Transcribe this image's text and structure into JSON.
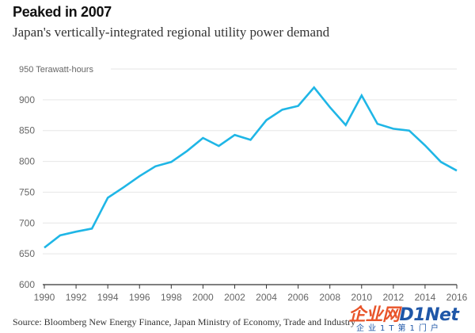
{
  "title": "Peaked in 2007",
  "subtitle": "Japan's vertically-integrated regional utility power demand",
  "source": "Source: Bloomberg New Energy Finance, Japan Ministry of Economy, Trade and Industry",
  "watermark": {
    "part1": "企业网",
    "part2": "D1Net",
    "sub": "企业1T第1门户"
  },
  "colors": {
    "line": "#1fb6e6",
    "grid": "#e6e6e6",
    "axis": "#333333",
    "tick_text": "#666666"
  },
  "chart_data": {
    "type": "line",
    "title": "Peaked in 2007",
    "subtitle": "Japan's vertically-integrated regional utility power demand",
    "ylabel": "Terawatt-hours",
    "y_unit_label": "950 Terawatt-hours",
    "xlim": [
      1990,
      2016
    ],
    "ylim": [
      600,
      950
    ],
    "yticks": [
      600,
      650,
      700,
      750,
      800,
      850,
      900,
      950
    ],
    "xticks": [
      1990,
      1992,
      1994,
      1996,
      1998,
      2000,
      2002,
      2004,
      2006,
      2008,
      2010,
      2012,
      2014,
      2016
    ],
    "grid": "horizontal",
    "x": [
      1990,
      1991,
      1992,
      1993,
      1994,
      1995,
      1996,
      1997,
      1998,
      1999,
      2000,
      2001,
      2002,
      2003,
      2004,
      2005,
      2006,
      2007,
      2008,
      2009,
      2010,
      2011,
      2012,
      2013,
      2014,
      2015,
      2016
    ],
    "values": [
      660,
      680,
      686,
      691,
      741,
      758,
      776,
      792,
      799,
      817,
      838,
      825,
      843,
      835,
      867,
      884,
      890,
      920,
      888,
      859,
      907,
      861,
      853,
      850,
      826,
      799,
      785
    ]
  }
}
